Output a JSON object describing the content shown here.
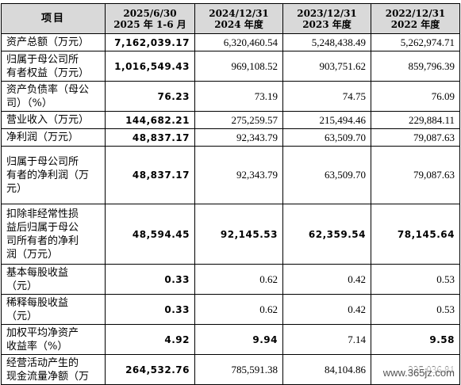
{
  "header": {
    "item": "项目",
    "cols": [
      {
        "line1": "2025/6/30",
        "line2": "2025 年 1-6 月"
      },
      {
        "line1": "2024/12/31",
        "line2": "2024 年度"
      },
      {
        "line1": "2023/12/31",
        "line2": "2023 年度"
      },
      {
        "line1": "2022/12/31",
        "line2": "2022 年度"
      }
    ]
  },
  "rows": [
    {
      "label": [
        "资产总额（万元）"
      ],
      "values": [
        "7,162,039.17",
        "6,320,460.54",
        "5,248,438.49",
        "5,262,974.71"
      ],
      "bold": [
        true,
        false,
        false,
        false
      ]
    },
    {
      "label": [
        "归属于母公司所",
        "有者权益（万元）"
      ],
      "values": [
        "1,016,549.43",
        "969,108.52",
        "903,751.62",
        "859,796.39"
      ],
      "bold": [
        true,
        false,
        false,
        false
      ]
    },
    {
      "label": [
        "资产负债率（母公",
        "司）（%）"
      ],
      "values": [
        "76.23",
        "73.19",
        "74.75",
        "76.09"
      ],
      "bold": [
        true,
        false,
        false,
        false
      ]
    },
    {
      "label": [
        "营业收入（万元）"
      ],
      "values": [
        "144,682.21",
        "275,259.57",
        "215,494.46",
        "229,884.11"
      ],
      "bold": [
        true,
        false,
        false,
        false
      ]
    },
    {
      "label": [
        "净利润（万元）"
      ],
      "values": [
        "48,837.17",
        "92,343.79",
        "63,509.70",
        "79,087.63"
      ],
      "bold": [
        true,
        false,
        false,
        false
      ]
    },
    {
      "label": [
        "归属于母公司所",
        "有者的净利润（万",
        "元）"
      ],
      "values": [
        "48,837.17",
        "92,343.79",
        "63,509.70",
        "79,087.63"
      ],
      "bold": [
        true,
        false,
        false,
        false
      ]
    },
    {
      "label": [
        "扣除非经常性损",
        "益后归属于母公",
        "司所有者的净利",
        "润（万元）"
      ],
      "values": [
        "48,594.45",
        "92,145.53",
        "62,359.54",
        "78,145.64"
      ],
      "bold": [
        true,
        true,
        true,
        true
      ]
    },
    {
      "label": [
        "基本每股收益",
        "（元）"
      ],
      "values": [
        "0.33",
        "0.62",
        "0.42",
        "0.53"
      ],
      "bold": [
        true,
        false,
        false,
        false
      ]
    },
    {
      "label": [
        "稀释每股收益",
        "（元）"
      ],
      "values": [
        "0.33",
        "0.62",
        "0.42",
        "0.53"
      ],
      "bold": [
        true,
        false,
        false,
        false
      ]
    },
    {
      "label": [
        "加权平均净资产",
        "收益率（%）"
      ],
      "values": [
        "4.92",
        "9.94",
        "7.14",
        "9.58"
      ],
      "bold": [
        true,
        true,
        false,
        true
      ]
    },
    {
      "label": [
        "经营活动产生的",
        "现金流量净额（万"
      ],
      "values": [
        "264,532.76",
        "785,591.38",
        "84,104.86",
        "225,036.81"
      ],
      "bold": [
        true,
        false,
        false,
        false
      ]
    }
  ],
  "watermark": "www.365jz.com"
}
